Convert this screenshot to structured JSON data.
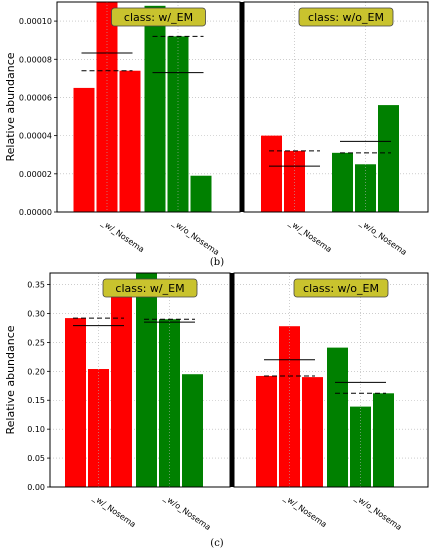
{
  "chart_data": [
    {
      "type": "bar",
      "caption": "(b)",
      "ylabel": "Relative abundance",
      "ylim": [
        0,
        0.00011
      ],
      "yticks": [
        "0.00000",
        "0.00002",
        "0.00004",
        "0.00006",
        "0.00008",
        "0.00010"
      ],
      "grid": true,
      "panels": [
        {
          "title": "class: w/_EM",
          "groups": [
            {
              "label": "_w/_Nosema",
              "color": "#ff0000",
              "values": [
                6.5e-05,
                0.000115,
                7.4e-05
              ],
              "mean": 8.33e-05,
              "median": 7.4e-05
            },
            {
              "label": "_w/o_Nosema",
              "color": "#008000",
              "values": [
                0.000108,
                9.2e-05,
                1.9e-05
              ],
              "mean": 7.3e-05,
              "median": 9.2e-05
            }
          ]
        },
        {
          "title": "class: w/o_EM",
          "groups": [
            {
              "label": "_w/_Nosema",
              "color": "#ff0000",
              "values": [
                4e-05,
                3.2e-05,
                0.0
              ],
              "mean": 2.4e-05,
              "median": 3.2e-05
            },
            {
              "label": "_w/o_Nosema",
              "color": "#008000",
              "values": [
                3.1e-05,
                2.5e-05,
                5.6e-05
              ],
              "mean": 3.7e-05,
              "median": 3.1e-05
            }
          ]
        }
      ]
    },
    {
      "type": "bar",
      "caption": "(c)",
      "ylabel": "Relative abundance",
      "ylim": [
        0,
        0.37
      ],
      "yticks": [
        "0.00",
        "0.05",
        "0.10",
        "0.15",
        "0.20",
        "0.25",
        "0.30",
        "0.35"
      ],
      "grid": true,
      "panels": [
        {
          "title": "class: w/_EM",
          "groups": [
            {
              "label": "_w/_Nosema",
              "color": "#ff0000",
              "values": [
                0.292,
                0.204,
                0.34
              ],
              "mean": 0.279,
              "median": 0.292
            },
            {
              "label": "_w/o_Nosema",
              "color": "#008000",
              "values": [
                0.37,
                0.29,
                0.195
              ],
              "mean": 0.285,
              "median": 0.29
            }
          ]
        },
        {
          "title": "class: w/o_EM",
          "groups": [
            {
              "label": "_w/_Nosema",
              "color": "#ff0000",
              "values": [
                0.192,
                0.278,
                0.19
              ],
              "mean": 0.22,
              "median": 0.192
            },
            {
              "label": "_w/o_Nosema",
              "color": "#008000",
              "values": [
                0.241,
                0.139,
                0.162
              ],
              "mean": 0.181,
              "median": 0.162
            }
          ]
        }
      ]
    }
  ]
}
